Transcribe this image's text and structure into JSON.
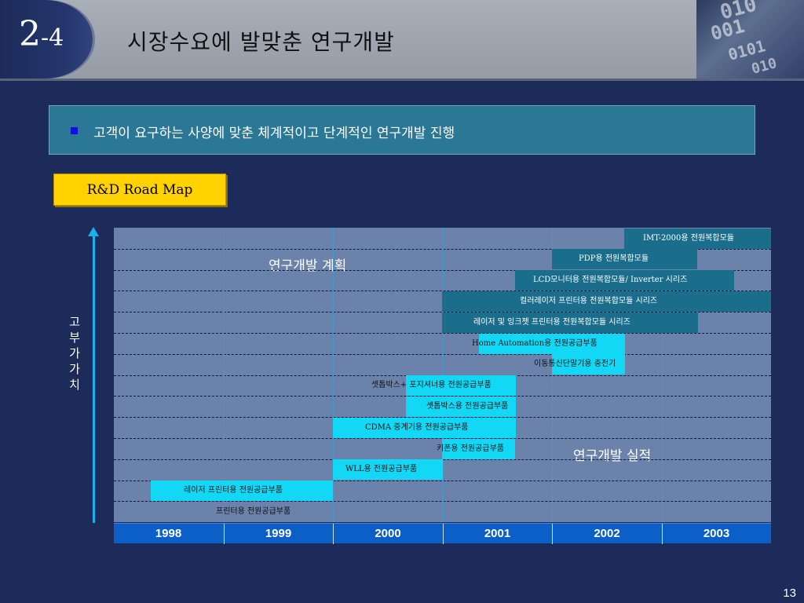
{
  "header": {
    "section_number": "2",
    "section_suffix": "-4",
    "title": "시장수요에 발맞춘 연구개발"
  },
  "banner": {
    "text": "고객이 요구하는 사양에 맞춘 체계적이고 단계적인 연구개발 진행"
  },
  "roadmap_label": "R&D Road Map",
  "axis_label": "고\n부\n가\n가\n치",
  "chart_labels": {
    "plan": "연구개발 계획",
    "actual": "연구개발 실적"
  },
  "years": [
    "1998",
    "1999",
    "2000",
    "2001",
    "2002",
    "2003"
  ],
  "items": [
    {
      "label": "IMT-2000용 전원복합모듈",
      "status": "plan"
    },
    {
      "label": "PDP용 전원복합모듈",
      "status": "plan"
    },
    {
      "label": "LCD모니터용 전원복합모듈/ Inverter 시리즈",
      "status": "plan"
    },
    {
      "label": "컬러레이저 프린터용 전원복합모듈 시리즈",
      "status": "plan"
    },
    {
      "label": "레이저 및 잉크젯 프린터용 전원복합모듈 시리즈",
      "status": "plan"
    },
    {
      "label": "Home Automation용 전원공급부품",
      "status": "actual"
    },
    {
      "label": "이동통신단말기용 충전기",
      "status": "actual"
    },
    {
      "label": "셋톱박스+ 포지셔너용 전원공급부품",
      "status": "actual"
    },
    {
      "label": "셋톱박스용 전원공급부품",
      "status": "actual"
    },
    {
      "label": "CDMA 중계기용 전원공급부품",
      "status": "actual"
    },
    {
      "label": "키폰용 전원공급부품",
      "status": "actual"
    },
    {
      "label": "WLL용 전원공급부품",
      "status": "actual"
    },
    {
      "label": "레이저 프린터용 전원공급부품",
      "status": "actual"
    },
    {
      "label": "프린터용 전원공급부품",
      "status": "actual"
    }
  ],
  "page_number": "13"
}
